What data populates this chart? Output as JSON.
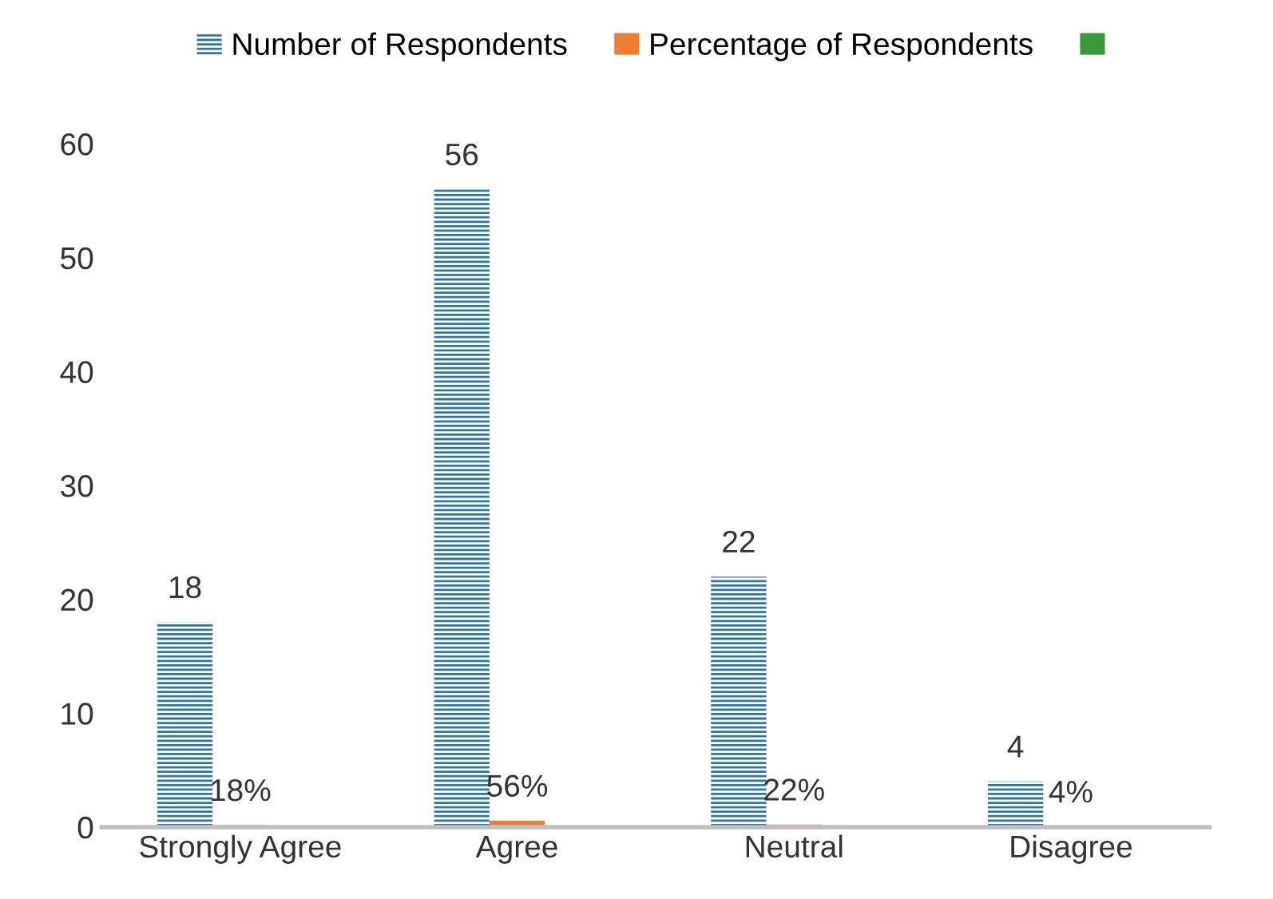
{
  "chart_data": {
    "type": "bar",
    "categories": [
      "Strongly Agree",
      "Agree",
      "Neutral",
      "Disagree"
    ],
    "series": [
      {
        "name": "Number of Respondents",
        "color": "#2e75a0",
        "values": [
          18,
          56,
          22,
          4
        ],
        "value_labels": [
          "18",
          "56",
          "22",
          "4"
        ]
      },
      {
        "name": "Percentage of Respondents",
        "color": "#ed7d31",
        "values": [
          0.18,
          0.56,
          0.22,
          0.04
        ],
        "value_labels": [
          "18%",
          "56%",
          "22%",
          "4%"
        ]
      },
      {
        "color": "#3a9a3a",
        "values": [
          null,
          null,
          null,
          null
        ]
      }
    ],
    "ylim": [
      0,
      60
    ],
    "yticks": [
      0,
      10,
      20,
      30,
      40,
      50,
      60
    ],
    "grid": false,
    "legend": "top"
  }
}
